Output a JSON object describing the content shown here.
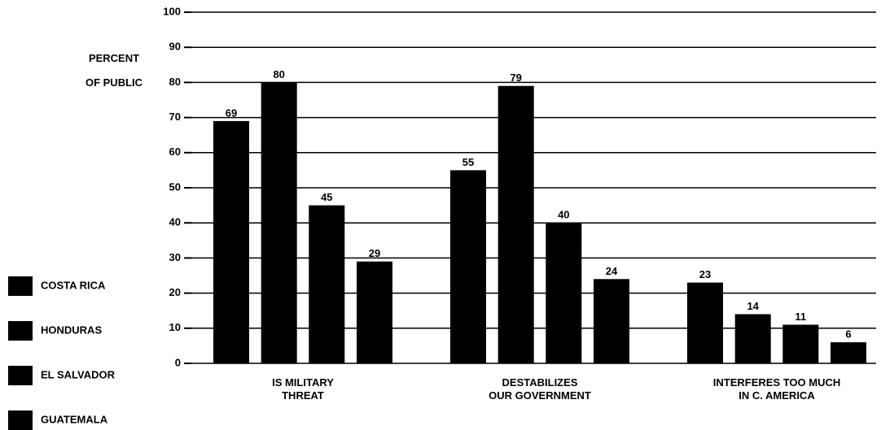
{
  "chart_data": {
    "type": "bar",
    "ylabel": "PERCENT\nOF PUBLIC",
    "categories": [
      "IS MILITARY\nTHREAT",
      "DESTABILIZES\nOUR GOVERNMENT",
      "INTERFERES TOO MUCH\nIN C. AMERICA"
    ],
    "series": [
      {
        "name": "COSTA RICA",
        "color": "#000000",
        "values": [
          69,
          55,
          23
        ]
      },
      {
        "name": "HONDURAS",
        "color": "#000000",
        "values": [
          80,
          79,
          14
        ]
      },
      {
        "name": "EL SALVADOR",
        "color": "#000000",
        "values": [
          45,
          40,
          11
        ]
      },
      {
        "name": "GUATEMALA",
        "color": "#000000",
        "values": [
          29,
          24,
          6
        ]
      }
    ],
    "ylim": [
      0,
      100
    ],
    "yticks": [
      0,
      10,
      20,
      30,
      40,
      50,
      60,
      70,
      80,
      90,
      100
    ],
    "grid": true,
    "legend": "left"
  }
}
